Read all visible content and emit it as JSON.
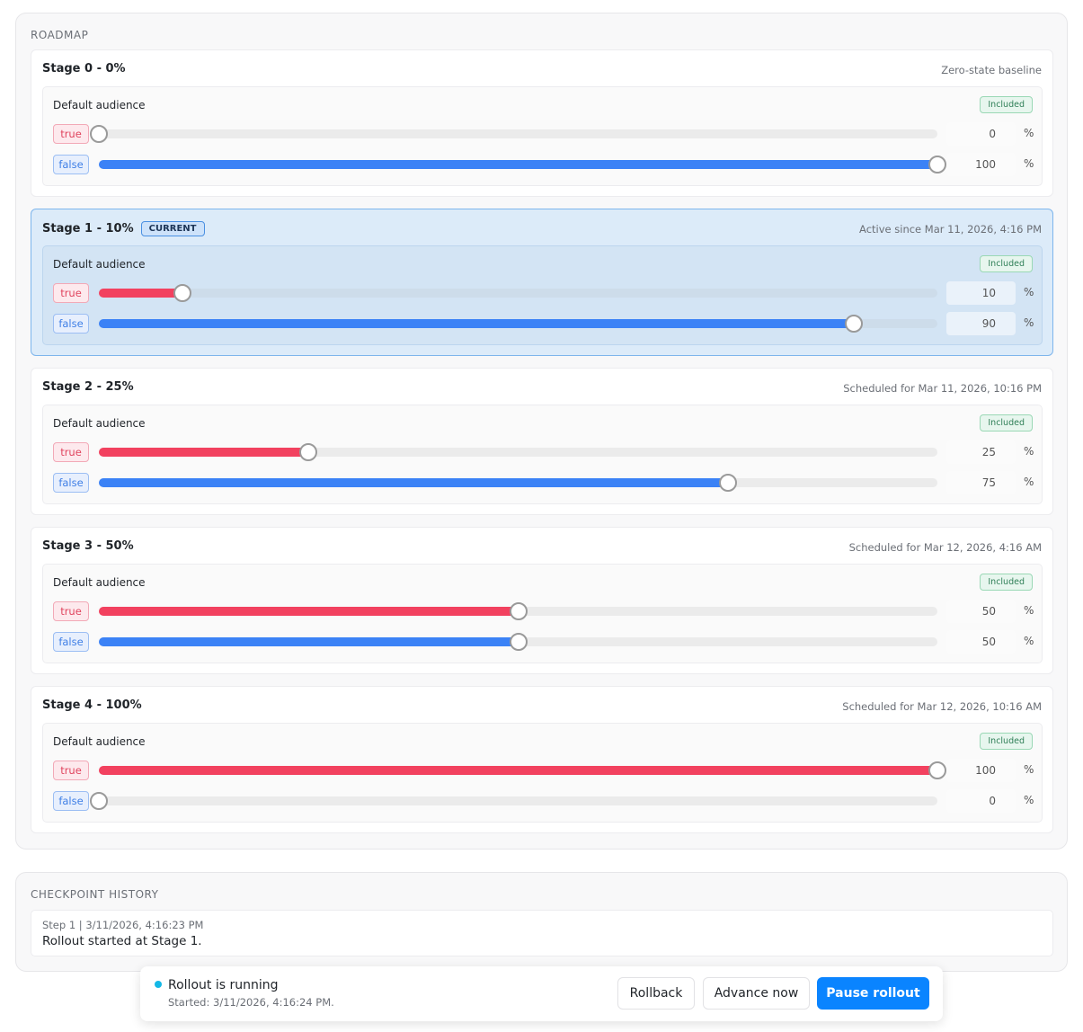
{
  "roadmap": {
    "title": "ROADMAP",
    "unit": "%",
    "scale": [
      0,
      100
    ],
    "stages": [
      {
        "name": "Stage 0 - 0%",
        "meta": "Zero-state baseline",
        "audience": "Default audience",
        "status": "Included",
        "variants": [
          {
            "label": "true",
            "value": 0
          },
          {
            "label": "false",
            "value": 100
          }
        ]
      },
      {
        "name": "Stage 1 - 10%",
        "badge": "CURRENT",
        "meta": "Active since Mar 11, 2026, 4:16 PM",
        "audience": "Default audience",
        "status": "Included",
        "variants": [
          {
            "label": "true",
            "value": 10
          },
          {
            "label": "false",
            "value": 90
          }
        ]
      },
      {
        "name": "Stage 2 - 25%",
        "meta": "Scheduled for Mar 11, 2026, 10:16 PM",
        "audience": "Default audience",
        "status": "Included",
        "variants": [
          {
            "label": "true",
            "value": 25
          },
          {
            "label": "false",
            "value": 75
          }
        ]
      },
      {
        "name": "Stage 3 - 50%",
        "meta": "Scheduled for Mar 12, 2026, 4:16 AM",
        "audience": "Default audience",
        "status": "Included",
        "variants": [
          {
            "label": "true",
            "value": 50
          },
          {
            "label": "false",
            "value": 50
          }
        ]
      },
      {
        "name": "Stage 4 - 100%",
        "meta": "Scheduled for Mar 12, 2026, 10:16 AM",
        "audience": "Default audience",
        "status": "Included",
        "variants": [
          {
            "label": "true",
            "value": 100
          },
          {
            "label": "false",
            "value": 0
          }
        ]
      }
    ]
  },
  "checkpoint_history": {
    "title": "CHECKPOINT HISTORY",
    "entries": [
      {
        "meta": "Step 1 | 3/11/2026, 4:16:23 PM",
        "text": "Rollout started at Stage 1."
      }
    ]
  },
  "status_bar": {
    "status": "Rollout is running",
    "started": "Started: 3/11/2026, 4:16:24 PM.",
    "buttons": [
      "Rollback",
      "Advance now",
      "Pause rollout"
    ]
  }
}
